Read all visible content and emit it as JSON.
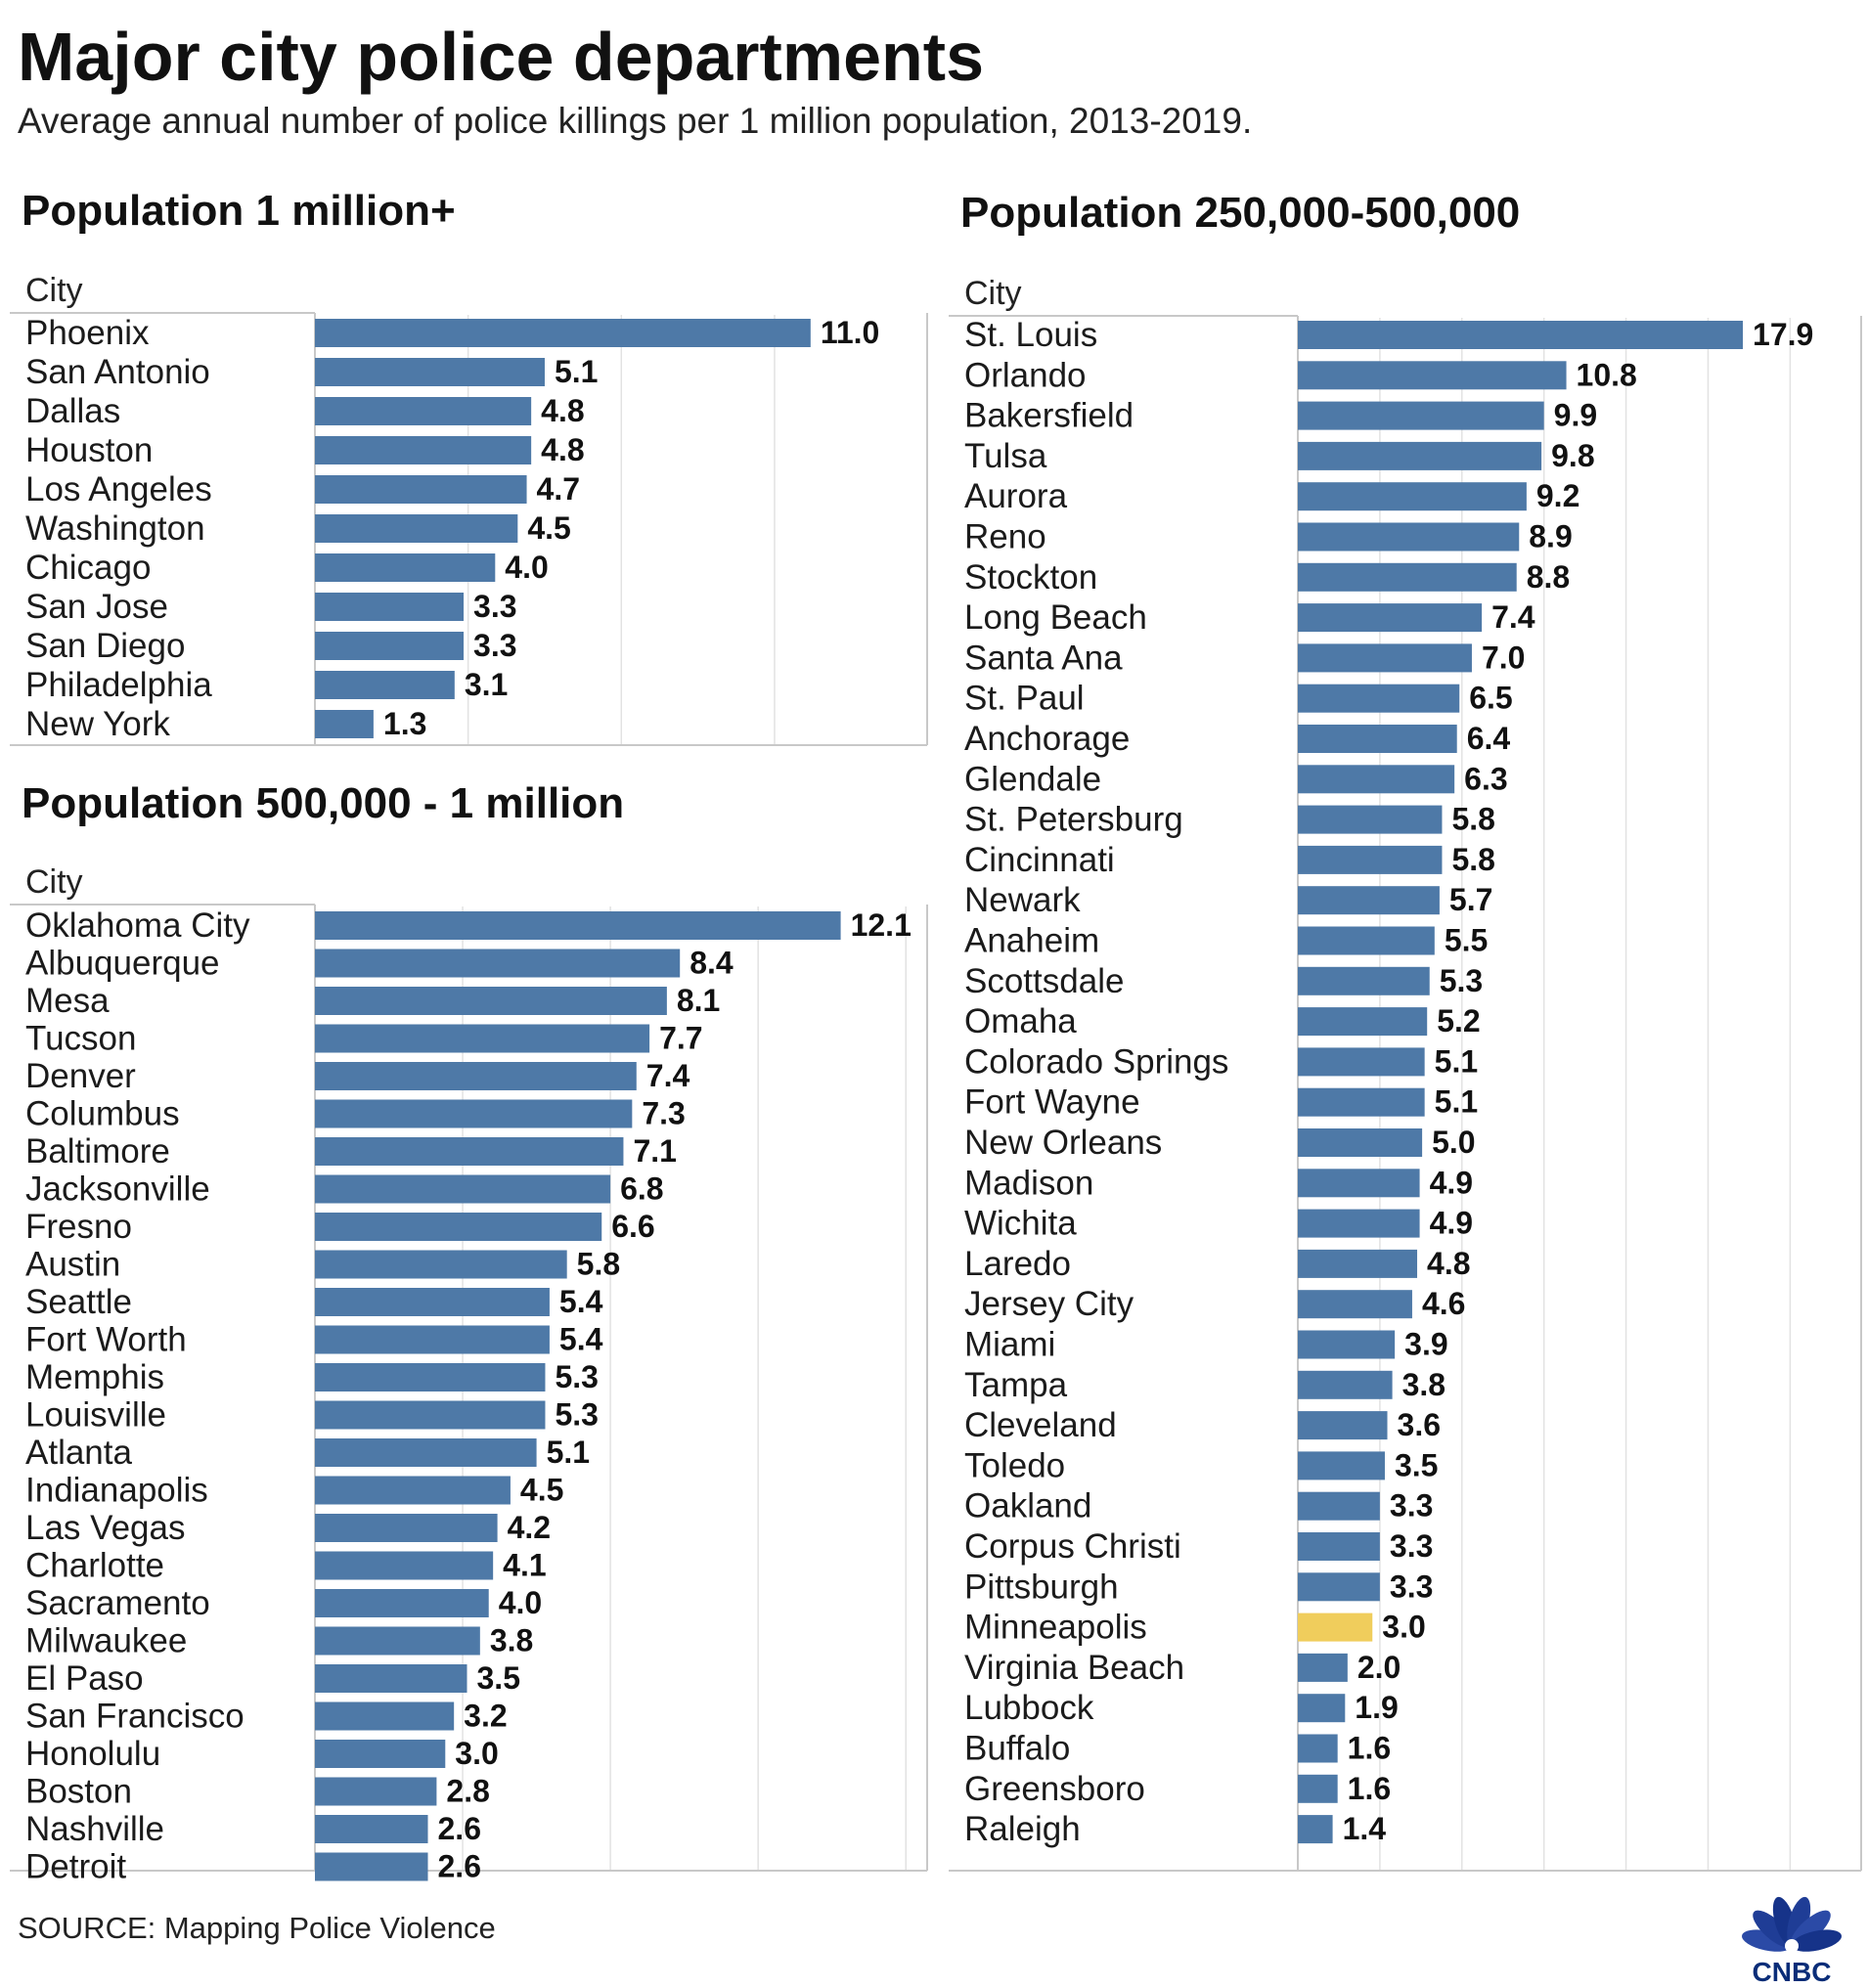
{
  "title": "Major city police departments",
  "subtitle": "Average annual number of police killings per 1 million population, 2013-2019.",
  "source": "SOURCE: Mapping Police Violence",
  "logo": {
    "text": "CNBC",
    "icon": "peacock-logo-icon"
  },
  "colors": {
    "bar": "#4e79a7",
    "highlight": "#f0cd5c",
    "grid": "#e2e2e2",
    "frame": "#c8c8c8"
  },
  "chart_data": [
    {
      "type": "bar",
      "orientation": "horizontal",
      "title": "Population 1 million+",
      "column_header": "City",
      "xlim": [
        0,
        13.5
      ],
      "categories": [
        "Phoenix",
        "San Antonio",
        "Dallas",
        "Houston",
        "Los Angeles",
        "Washington",
        "Chicago",
        "San Jose",
        "San Diego",
        "Philadelphia",
        "New York"
      ],
      "values": [
        11.0,
        5.1,
        4.8,
        4.8,
        4.7,
        4.5,
        4.0,
        3.3,
        3.3,
        3.1,
        1.3
      ],
      "labels": [
        "11.0",
        "5.1",
        "4.8",
        "4.8",
        "4.7",
        "4.5",
        "4.0",
        "3.3",
        "3.3",
        "3.1",
        "1.3"
      ]
    },
    {
      "type": "bar",
      "orientation": "horizontal",
      "title": "Population 500,000 - 1 million",
      "column_header": "City",
      "xlim": [
        0,
        14
      ],
      "categories": [
        "Oklahoma City",
        "Albuquerque",
        "Mesa",
        "Tucson",
        "Denver",
        "Columbus",
        "Baltimore",
        "Jacksonville",
        "Fresno",
        "Austin",
        "Seattle",
        "Fort Worth",
        "Memphis",
        "Louisville",
        "Atlanta",
        "Indianapolis",
        "Las Vegas",
        "Charlotte",
        "Sacramento",
        "Milwaukee",
        "El Paso",
        "San Francisco",
        "Honolulu",
        "Boston",
        "Nashville",
        "Detroit"
      ],
      "values": [
        12.1,
        8.4,
        8.1,
        7.7,
        7.4,
        7.3,
        7.1,
        6.8,
        6.6,
        5.8,
        5.4,
        5.4,
        5.3,
        5.3,
        5.1,
        4.5,
        4.2,
        4.1,
        4.0,
        3.8,
        3.5,
        3.2,
        3.0,
        2.8,
        2.6,
        2.6
      ],
      "labels": [
        "12.1",
        "8.4",
        "8.1",
        "7.7",
        "7.4",
        "7.3",
        "7.1",
        "6.8",
        "6.6",
        "5.8",
        "5.4",
        "5.4",
        "5.3",
        "5.3",
        "5.1",
        "4.5",
        "4.2",
        "4.1",
        "4.0",
        "3.8",
        "3.5",
        "3.2",
        "3.0",
        "2.8",
        "2.6",
        "2.6"
      ]
    },
    {
      "type": "bar",
      "orientation": "horizontal",
      "title": "Population 250,000-500,000",
      "column_header": "City",
      "xlim": [
        0,
        22.5
      ],
      "highlight": "Minneapolis",
      "categories": [
        "St. Louis",
        "Orlando",
        "Bakersfield",
        "Tulsa",
        "Aurora",
        "Reno",
        "Stockton",
        "Long Beach",
        "Santa Ana",
        "St. Paul",
        "Anchorage",
        "Glendale",
        "St. Petersburg",
        "Cincinnati",
        "Newark",
        "Anaheim",
        "Scottsdale",
        "Omaha",
        "Colorado Springs",
        "Fort Wayne",
        "New Orleans",
        "Madison",
        "Wichita",
        "Laredo",
        "Jersey City",
        "Miami",
        "Tampa",
        "Cleveland",
        "Toledo",
        "Oakland",
        "Corpus Christi",
        "Pittsburgh",
        "Minneapolis",
        "Virginia Beach",
        "Lubbock",
        "Buffalo",
        "Greensboro",
        "Raleigh"
      ],
      "values": [
        17.9,
        10.8,
        9.9,
        9.8,
        9.2,
        8.9,
        8.8,
        7.4,
        7.0,
        6.5,
        6.4,
        6.3,
        5.8,
        5.8,
        5.7,
        5.5,
        5.3,
        5.2,
        5.1,
        5.1,
        5.0,
        4.9,
        4.9,
        4.8,
        4.6,
        3.9,
        3.8,
        3.6,
        3.5,
        3.3,
        3.3,
        3.3,
        3.0,
        2.0,
        1.9,
        1.6,
        1.6,
        1.4
      ],
      "labels": [
        "17.9",
        "10.8",
        "9.9",
        "9.8",
        "9.2",
        "8.9",
        "8.8",
        "7.4",
        "7.0",
        "6.5",
        "6.4",
        "6.3",
        "5.8",
        "5.8",
        "5.7",
        "5.5",
        "5.3",
        "5.2",
        "5.1",
        "5.1",
        "5.0",
        "4.9",
        "4.9",
        "4.8",
        "4.6",
        "3.9",
        "3.8",
        "3.6",
        "3.5",
        "3.3",
        "3.3",
        "3.3",
        "3.0",
        "2.0",
        "1.9",
        "1.6",
        "1.6",
        "1.4"
      ]
    }
  ]
}
